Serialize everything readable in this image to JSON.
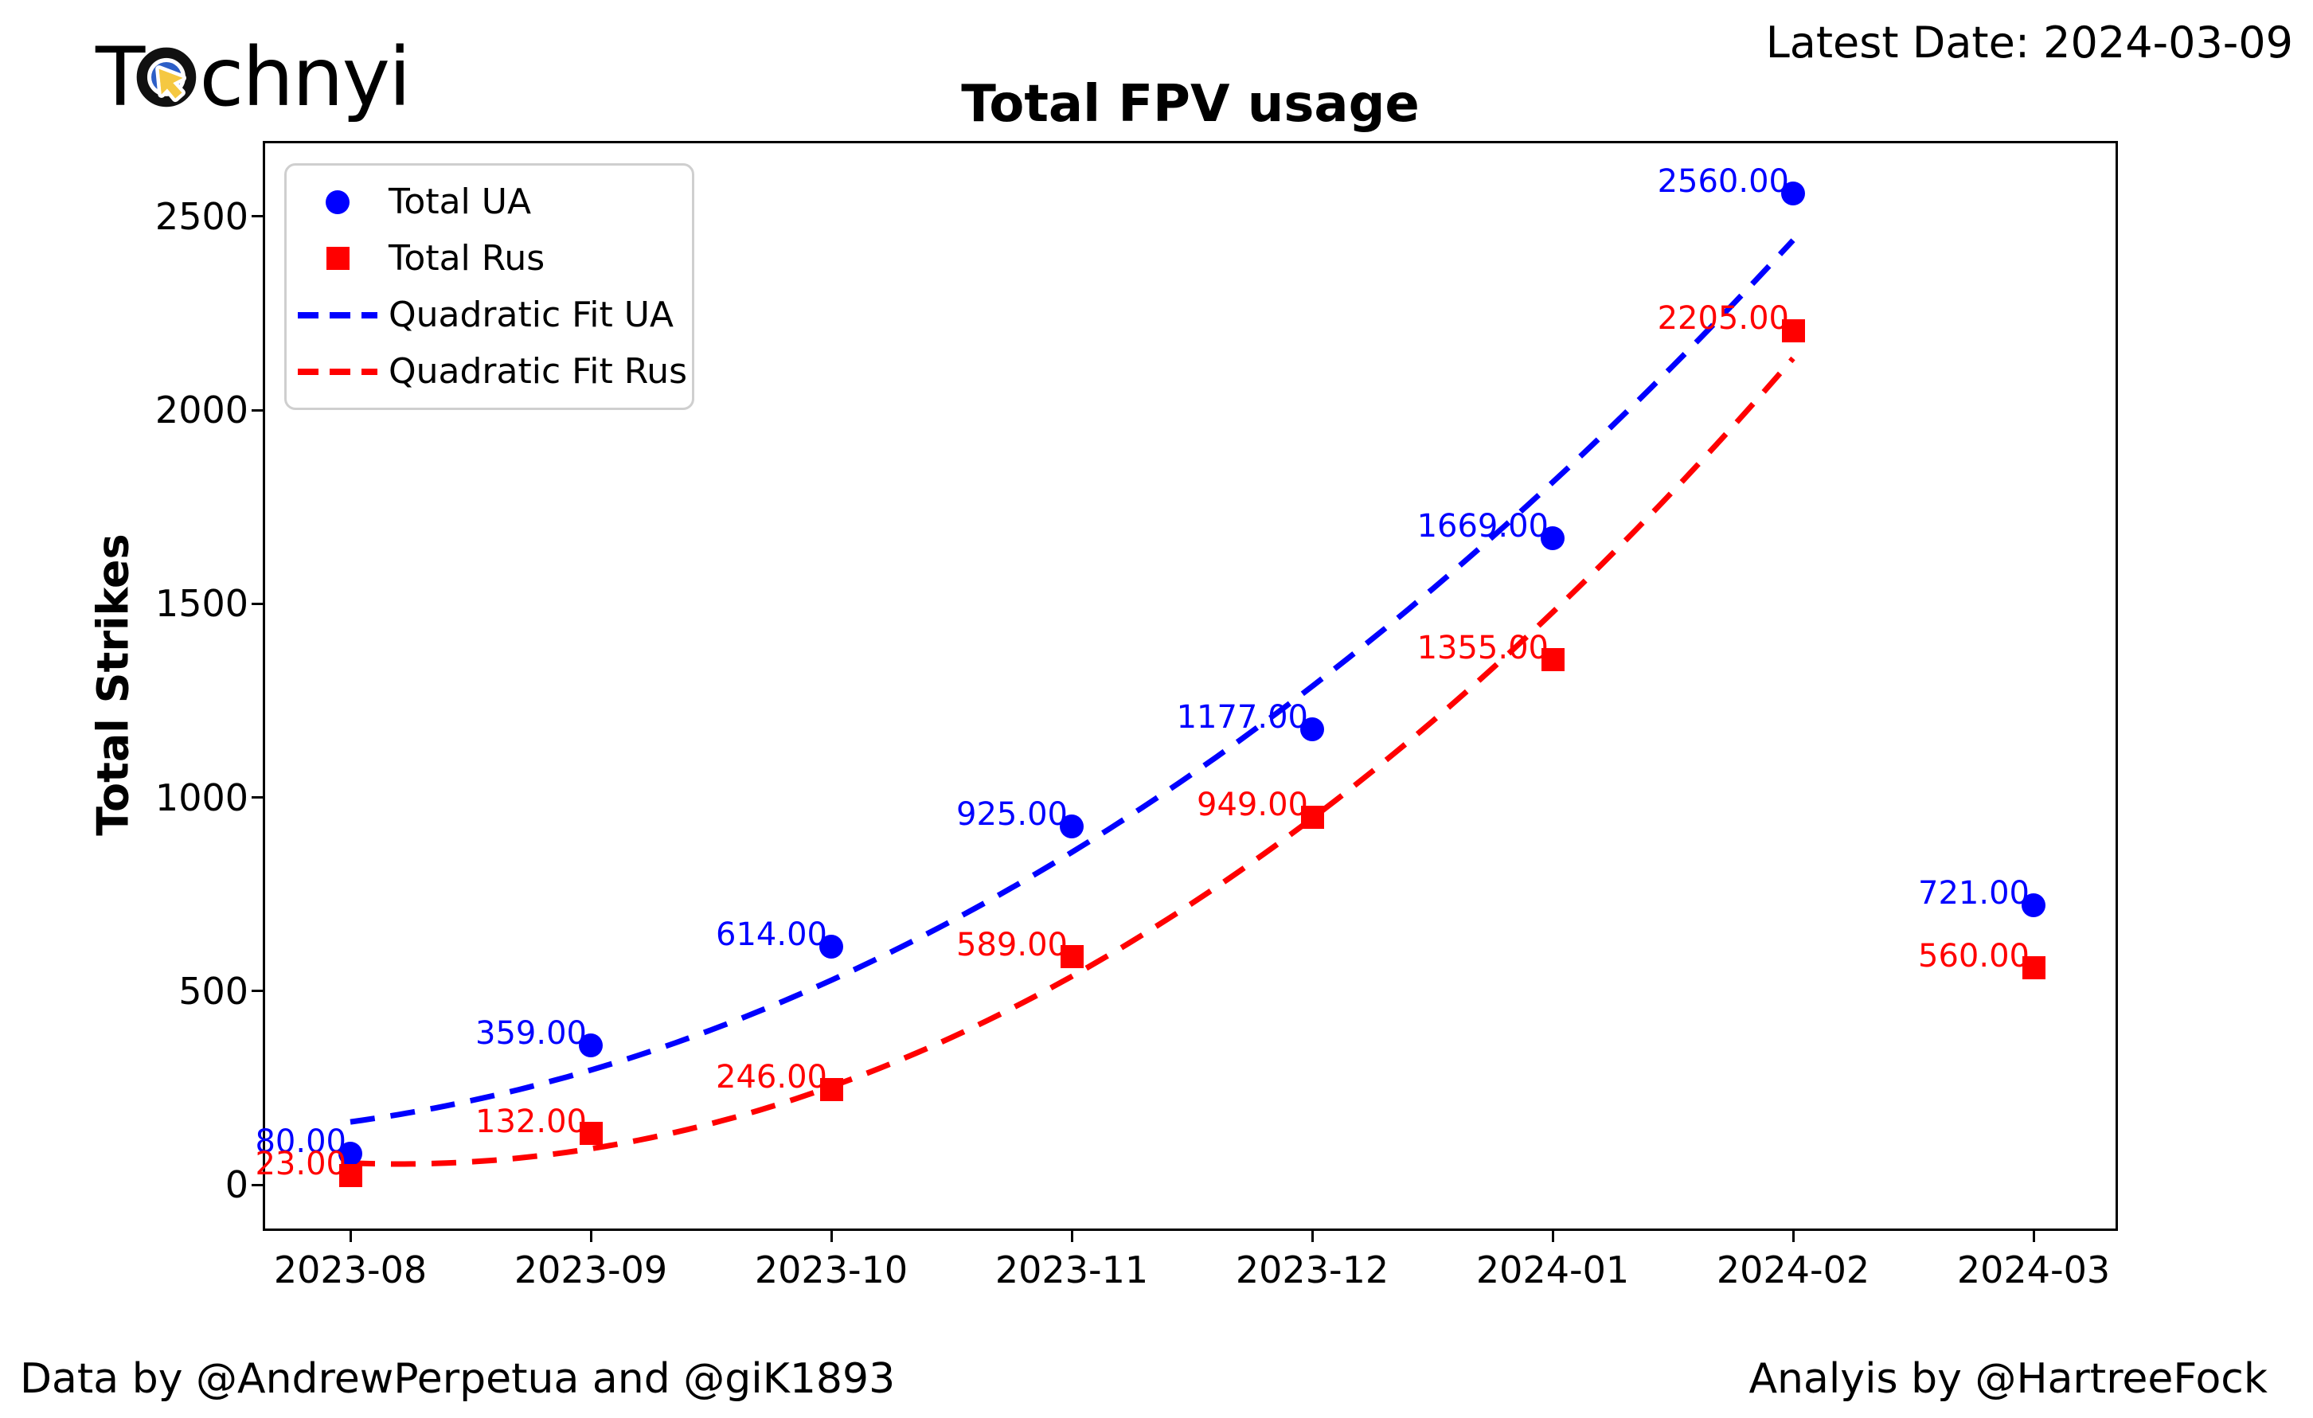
{
  "header": {
    "logo": {
      "pre": "T",
      "post": "chnyi"
    },
    "latest_date": "Latest Date: 2024-03-09"
  },
  "footer": {
    "credit_left": "Data by @AndrewPerpetua and @giK1893",
    "credit_right": "Analyis by @HartreeFock"
  },
  "chart_data": {
    "type": "scatter",
    "title": "Total FPV usage",
    "xlabel": "",
    "ylabel": "Total Strikes",
    "categories": [
      "2023-08",
      "2023-09",
      "2023-10",
      "2023-11",
      "2023-12",
      "2024-01",
      "2024-02",
      "2024-03"
    ],
    "series": [
      {
        "name": "Total UA",
        "marker": "circle",
        "color": "#0000ff",
        "values": [
          80,
          359,
          614,
          925,
          1177,
          1669,
          2560,
          721
        ]
      },
      {
        "name": "Total Rus",
        "marker": "square",
        "color": "#ff0000",
        "values": [
          23,
          132,
          246,
          589,
          949,
          1355,
          2205,
          560
        ]
      }
    ],
    "fits": [
      {
        "name": "Quadratic Fit UA",
        "color": "#0000ff",
        "style": "dashed",
        "coeffs": {
          "a": 49.13,
          "b": 84.61,
          "c": 162.4
        },
        "x_range": [
          0,
          6
        ]
      },
      {
        "name": "Quadratic Fit Rus",
        "color": "#ff0000",
        "style": "dashed",
        "coeffs": {
          "a": 61.89,
          "b": -25.11,
          "c": 56.3
        },
        "x_range": [
          0,
          6
        ]
      }
    ],
    "legend": {
      "position": "upper left",
      "entries": [
        "Total UA",
        "Total Rus",
        "Quadratic Fit UA",
        "Quadratic Fit Rus"
      ]
    },
    "yticks": [
      0,
      500,
      1000,
      1500,
      2000,
      2500
    ],
    "ylim": [
      -119,
      2695
    ],
    "grid": false,
    "point_label_decimals": 2
  }
}
